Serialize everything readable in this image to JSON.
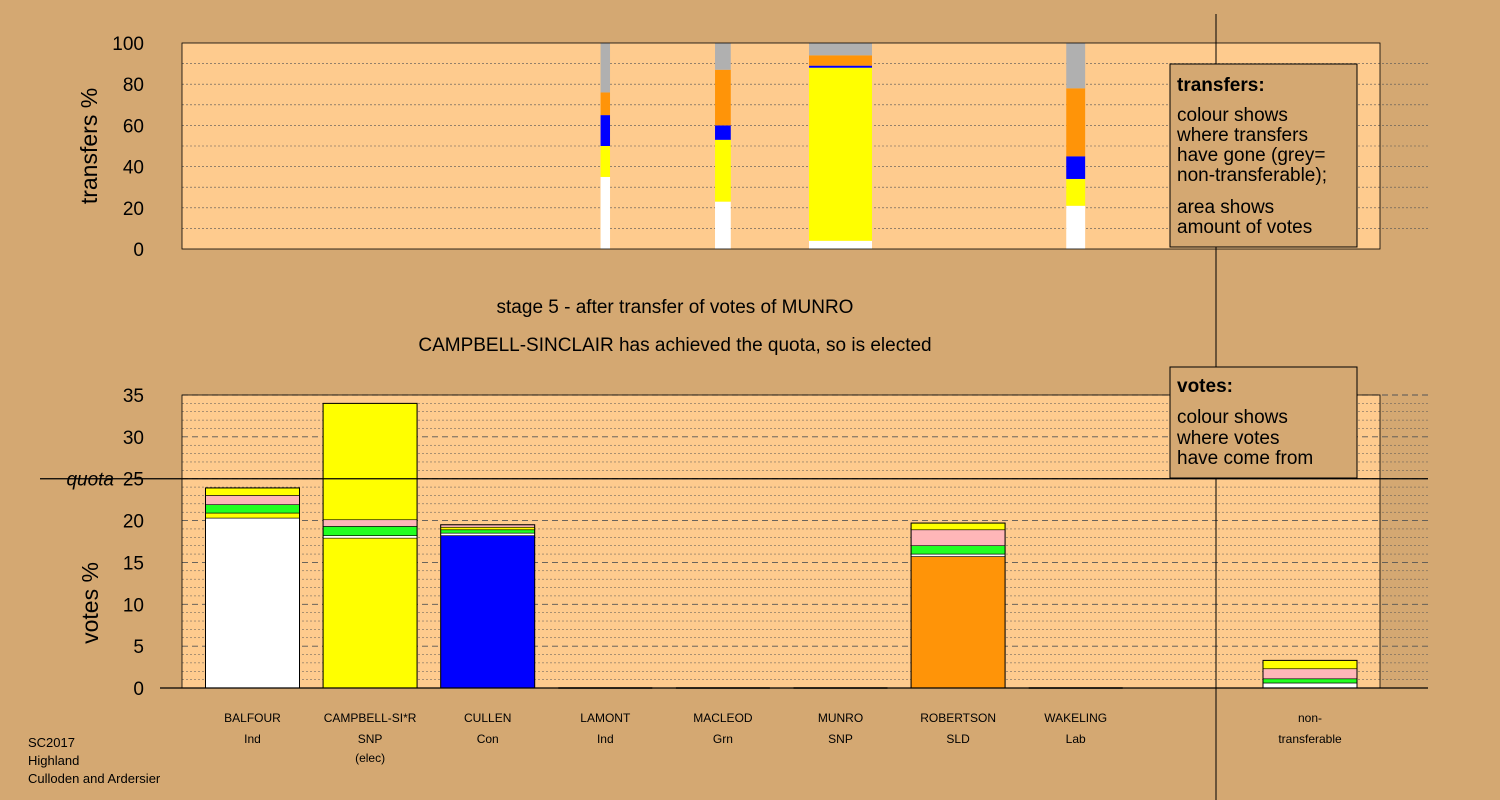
{
  "colors": {
    "background": "#d4a872",
    "plot_area": "#fecb8e",
    "legend_box": "#d4a872",
    "Ind": "#ffffff",
    "SNP": "#ffff00",
    "Con": "#0000ff",
    "Grn": "#22ff22",
    "SLD": "#ff9408",
    "Lab": "#ffb6b8",
    "nontransferable": "#b0b0b0"
  },
  "header": {
    "stage_title": "stage 5 - after transfer of votes of MUNRO",
    "status": "CAMPBELL-SINCLAIR has achieved the quota, so is elected"
  },
  "footer": {
    "election": "SC2017",
    "region": "Highland",
    "ward": "Culloden and Ardersier"
  },
  "legends": {
    "transfers": {
      "title": "transfers:",
      "lines1": [
        "colour shows",
        "where transfers",
        "have gone (grey=",
        "non-transferable);"
      ],
      "lines2": [
        "area shows",
        "amount of votes"
      ]
    },
    "votes": {
      "title": "votes:",
      "lines": [
        "colour shows",
        "where votes",
        "have come from"
      ]
    }
  },
  "quota_label": "quota",
  "chart_data": [
    {
      "type": "bar",
      "subtype": "stacked-100-variable-width",
      "ylabel": "transfers %",
      "ylim": [
        0,
        100
      ],
      "yticks": [
        0,
        20,
        40,
        60,
        80,
        100
      ],
      "grid": true,
      "columns": [
        {
          "candidate": "LAMONT",
          "weight": 0.3,
          "segments": [
            {
              "party": "Ind",
              "value": 35
            },
            {
              "party": "SNP",
              "value": 15
            },
            {
              "party": "Con",
              "value": 15
            },
            {
              "party": "SLD",
              "value": 11
            },
            {
              "party": "nontransferable",
              "value": 24
            }
          ]
        },
        {
          "candidate": "MACLEOD",
          "weight": 0.5,
          "segments": [
            {
              "party": "Ind",
              "value": 23
            },
            {
              "party": "SNP",
              "value": 30
            },
            {
              "party": "Con",
              "value": 7
            },
            {
              "party": "SLD",
              "value": 27
            },
            {
              "party": "nontransferable",
              "value": 13
            }
          ]
        },
        {
          "candidate": "MUNRO",
          "weight": 2.0,
          "segments": [
            {
              "party": "Ind",
              "value": 4
            },
            {
              "party": "SNP",
              "value": 84
            },
            {
              "party": "Con",
              "value": 1
            },
            {
              "party": "SLD",
              "value": 5
            },
            {
              "party": "nontransferable",
              "value": 6
            }
          ]
        },
        {
          "candidate": "WAKELING",
          "weight": 0.6,
          "segments": [
            {
              "party": "Ind",
              "value": 21
            },
            {
              "party": "SNP",
              "value": 13
            },
            {
              "party": "Con",
              "value": 11
            },
            {
              "party": "SLD",
              "value": 33
            },
            {
              "party": "nontransferable",
              "value": 22
            }
          ]
        }
      ]
    },
    {
      "type": "bar",
      "subtype": "stacked",
      "ylabel": "votes %",
      "ylim": [
        0,
        35
      ],
      "yticks": [
        0,
        5,
        10,
        15,
        20,
        25,
        30,
        35
      ],
      "quota": 25,
      "grid": true,
      "categories": [
        {
          "name": "BALFOUR",
          "party": "Ind",
          "note": ""
        },
        {
          "name": "CAMPBELL-SI*R",
          "party": "SNP",
          "note": "(elec)"
        },
        {
          "name": "CULLEN",
          "party": "Con",
          "note": ""
        },
        {
          "name": "LAMONT",
          "party": "Ind",
          "note": ""
        },
        {
          "name": "MACLEOD",
          "party": "Grn",
          "note": ""
        },
        {
          "name": "MUNRO",
          "party": "SNP",
          "note": ""
        },
        {
          "name": "ROBERTSON",
          "party": "SLD",
          "note": ""
        },
        {
          "name": "WAKELING",
          "party": "Lab",
          "note": ""
        }
      ],
      "nontransferable_label": [
        "non-",
        "transferable"
      ],
      "stacks": [
        [
          {
            "party": "Ind",
            "value": 20.3
          },
          {
            "party": "SNP",
            "value": 0.6
          },
          {
            "party": "Grn",
            "value": 1.0
          },
          {
            "party": "Lab",
            "value": 1.1
          },
          {
            "party": "SNP",
            "value": 0.9
          }
        ],
        [
          {
            "party": "SNP",
            "value": 17.9
          },
          {
            "party": "Ind",
            "value": 0.3
          },
          {
            "party": "Grn",
            "value": 1.1
          },
          {
            "party": "Lab",
            "value": 0.8
          },
          {
            "party": "SNP",
            "value": 13.9
          }
        ],
        [
          {
            "party": "Con",
            "value": 18.2
          },
          {
            "party": "Ind",
            "value": 0.3
          },
          {
            "party": "Grn",
            "value": 0.4
          },
          {
            "party": "SNP",
            "value": 0.3
          },
          {
            "party": "Lab",
            "value": 0.3
          }
        ],
        [],
        [],
        [],
        [
          {
            "party": "SLD",
            "value": 15.7
          },
          {
            "party": "Ind",
            "value": 0.3
          },
          {
            "party": "Grn",
            "value": 1.0
          },
          {
            "party": "Lab",
            "value": 1.9
          },
          {
            "party": "SNP",
            "value": 0.8
          }
        ],
        []
      ],
      "nontransferable": [
        {
          "party": "Ind",
          "value": 0.6
        },
        {
          "party": "Grn",
          "value": 0.5
        },
        {
          "party": "Lab",
          "value": 1.2
        },
        {
          "party": "SNP",
          "value": 1.0
        }
      ]
    }
  ]
}
